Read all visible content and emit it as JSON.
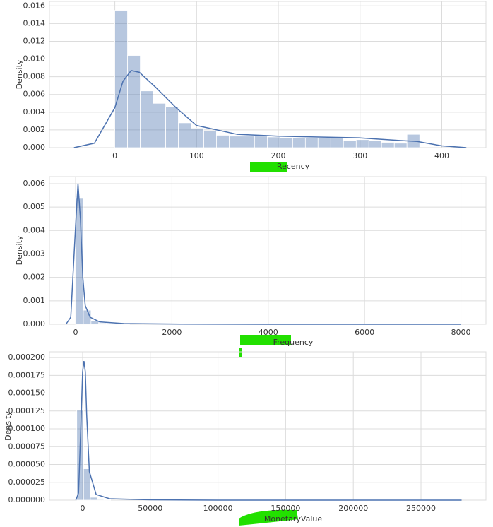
{
  "chart_data": [
    {
      "type": "histogram",
      "xlabel": "Recency",
      "ylabel": "Density",
      "color": "#4c72b0",
      "grid": true,
      "bins": [
        0,
        15.5,
        31.1,
        46.6,
        62.2,
        77.7,
        93.2,
        108.8,
        124.3,
        139.9,
        155.4,
        170.9,
        186.5,
        202,
        217.6,
        233.1,
        248.6,
        264.2,
        279.7,
        295.3,
        310.8,
        326.3,
        341.9,
        357.4,
        373
      ],
      "values": [
        0.0155,
        0.0104,
        0.0064,
        0.005,
        0.0046,
        0.0028,
        0.0022,
        0.0019,
        0.0014,
        0.0013,
        0.0013,
        0.0013,
        0.0012,
        0.0011,
        0.0011,
        0.0011,
        0.0011,
        0.0011,
        0.0008,
        0.0009,
        0.0008,
        0.0006,
        0.0005,
        0.0015
      ],
      "kde": {
        "x": [
          -50,
          -25,
          0,
          10,
          20,
          30,
          50,
          75,
          100,
          150,
          200,
          250,
          300,
          350,
          370,
          400,
          430
        ],
        "y": [
          0,
          0.0005,
          0.0045,
          0.0075,
          0.0087,
          0.0085,
          0.0068,
          0.0045,
          0.0025,
          0.0015,
          0.0013,
          0.0012,
          0.0011,
          0.0008,
          0.0007,
          0.0002,
          0
        ]
      },
      "xlim": [
        -80,
        454
      ],
      "ylim": [
        0,
        0.0165
      ],
      "xticks": [
        0,
        100,
        200,
        300,
        400
      ],
      "yticks": [
        {
          "value": 0,
          "label": "0.000"
        },
        {
          "value": 0.002,
          "label": "0.002"
        },
        {
          "value": 0.004,
          "label": "0.004"
        },
        {
          "value": 0.006,
          "label": "0.006"
        },
        {
          "value": 0.008,
          "label": "0.008"
        },
        {
          "value": 0.01,
          "label": "0.010"
        },
        {
          "value": 0.012,
          "label": "0.012"
        },
        {
          "value": 0.014,
          "label": "0.014"
        },
        {
          "value": 0.016,
          "label": "0.016"
        }
      ]
    },
    {
      "type": "histogram",
      "xlabel": "Frequency",
      "ylabel": "Density",
      "color": "#4c72b0",
      "grid": true,
      "bins": [
        0,
        160,
        320,
        480,
        640,
        800,
        960,
        1120,
        1280,
        1440,
        1600,
        1760,
        1920,
        2080,
        2240,
        2400,
        2560,
        2720,
        2880,
        3040,
        3200,
        3360,
        3520,
        3680,
        3840,
        4000,
        4160,
        4320,
        4480,
        4640,
        4800,
        4960,
        5120,
        5280,
        5440,
        5600,
        5760,
        5920,
        6080,
        6240,
        6400,
        6560,
        6720,
        6880,
        7040,
        7200,
        7360,
        7520,
        7680,
        7840,
        8000
      ],
      "values": [
        0.0054,
        0.0006,
        0.00015,
        5e-05,
        2e-05,
        1e-05,
        1e-05,
        0,
        0,
        0,
        0,
        0,
        0,
        0,
        0,
        0,
        0,
        0,
        0,
        0,
        0,
        0,
        0,
        0,
        0,
        0,
        0,
        0,
        0,
        0,
        0,
        0,
        0,
        0,
        0,
        0,
        0,
        0,
        0,
        0,
        0,
        0,
        0,
        0,
        0,
        0,
        0,
        0,
        0,
        0
      ],
      "kde": {
        "x": [
          -200,
          -100,
          0,
          50,
          100,
          150,
          200,
          300,
          500,
          1000,
          2000,
          4000,
          8000
        ],
        "y": [
          0,
          0.0003,
          0.0042,
          0.006,
          0.0045,
          0.002,
          0.0008,
          0.0003,
          0.0001,
          3e-05,
          1e-05,
          0,
          0
        ]
      },
      "xlim": [
        -543,
        8520
      ],
      "ylim": [
        0,
        0.0063
      ],
      "xticks": [
        0,
        2000,
        4000,
        6000,
        8000
      ],
      "yticks": [
        {
          "value": 0,
          "label": "0.000"
        },
        {
          "value": 0.001,
          "label": "0.001"
        },
        {
          "value": 0.002,
          "label": "0.002"
        },
        {
          "value": 0.003,
          "label": "0.003"
        },
        {
          "value": 0.004,
          "label": "0.004"
        },
        {
          "value": 0.005,
          "label": "0.005"
        },
        {
          "value": 0.006,
          "label": "0.006"
        }
      ]
    },
    {
      "type": "histogram",
      "xlabel": "MonetaryValue",
      "ylabel": "Density",
      "color": "#4c72b0",
      "grid": true,
      "bins": [
        -4300,
        700,
        5700,
        10700,
        15700,
        20700,
        25700,
        30700,
        35700,
        40700,
        45700,
        50700,
        55700,
        60700,
        65700,
        70700,
        75700,
        80700,
        85700,
        90700,
        95700,
        100700,
        105700,
        110700,
        115700,
        120700,
        125700,
        130700,
        135700,
        140700,
        145700,
        150700,
        155700,
        160700,
        165700,
        170700,
        175700,
        180700,
        185700,
        190700,
        195700,
        200700,
        205700,
        210700,
        215700,
        220700,
        225700,
        230700,
        235700,
        240700,
        245700,
        250700,
        255700,
        260700,
        265700,
        270700,
        275700,
        280700
      ],
      "values": [
        0.000126,
        4.4e-05,
        4e-06,
        1e-06,
        5e-07,
        0,
        0,
        0,
        0,
        0,
        0,
        0,
        0,
        0,
        0,
        0,
        0,
        0,
        0,
        0,
        0,
        0,
        0,
        0,
        0,
        0,
        0,
        0,
        0,
        0,
        0,
        0,
        0,
        0,
        0,
        0,
        0,
        0,
        0,
        0,
        0,
        0,
        0,
        0,
        0,
        0,
        0,
        0,
        0,
        0,
        0,
        0,
        0,
        0,
        0,
        0,
        0
      ],
      "kde": {
        "x": [
          -5000,
          -3000,
          -1000,
          0,
          1000,
          2000,
          3000,
          5000,
          10000,
          20000,
          50000,
          100000,
          280000
        ],
        "y": [
          0,
          1e-05,
          0.00012,
          0.00018,
          0.000195,
          0.00018,
          0.00012,
          4e-05,
          8e-06,
          2e-06,
          5e-07,
          0,
          0
        ]
      },
      "xlim": [
        -24500,
        298000
      ],
      "ylim": [
        0,
        0.000208
      ],
      "xticks": [
        0,
        50000,
        100000,
        150000,
        200000,
        250000
      ],
      "yticks": [
        {
          "value": 0,
          "label": "0.000000"
        },
        {
          "value": 2.5e-05,
          "label": "0.000025"
        },
        {
          "value": 5e-05,
          "label": "0.000050"
        },
        {
          "value": 7.5e-05,
          "label": "0.000075"
        },
        {
          "value": 0.0001,
          "label": "0.000100"
        },
        {
          "value": 0.000125,
          "label": "0.000125"
        },
        {
          "value": 0.00015,
          "label": "0.000150"
        },
        {
          "value": 0.000175,
          "label": "0.000175"
        },
        {
          "value": 0.0002,
          "label": "0.000200"
        }
      ]
    }
  ]
}
